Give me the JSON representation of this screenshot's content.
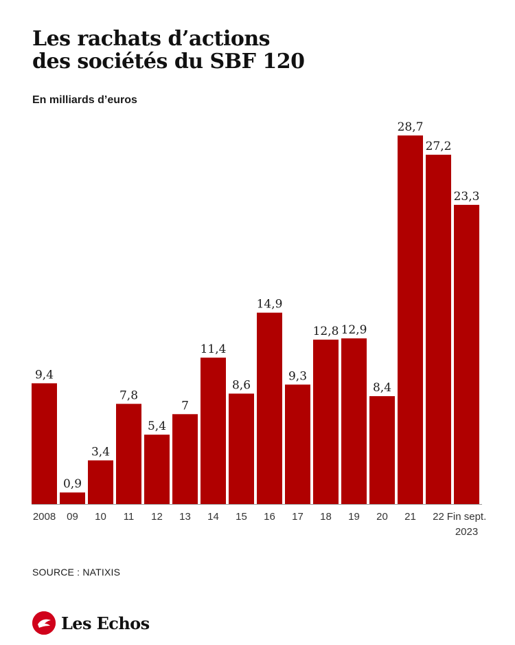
{
  "title_lines": [
    "Les rachats d’actions",
    "des sociétés du SBF 120"
  ],
  "subtitle": "En milliards d’euros",
  "source": "SOURCE : NATIXIS",
  "brand": "Les Echos",
  "colors": {
    "bar": "#b00000",
    "baseline": "#9a9a9a",
    "logo": "#d0021b"
  },
  "chart_data": {
    "type": "bar",
    "categories": [
      [
        "2008"
      ],
      [
        "09"
      ],
      [
        "10"
      ],
      [
        "11"
      ],
      [
        "12"
      ],
      [
        "13"
      ],
      [
        "14"
      ],
      [
        "15"
      ],
      [
        "16"
      ],
      [
        "17"
      ],
      [
        "18"
      ],
      [
        "19"
      ],
      [
        "20"
      ],
      [
        "21"
      ],
      [
        "22"
      ],
      [
        "Fin sept.",
        "2023"
      ]
    ],
    "values": [
      9.4,
      0.9,
      3.4,
      7.8,
      5.4,
      7,
      11.4,
      8.6,
      14.9,
      9.3,
      12.8,
      12.9,
      8.4,
      28.7,
      27.2,
      23.3
    ],
    "value_labels": [
      "9,4",
      "0,9",
      "3,4",
      "7,8",
      "5,4",
      "7",
      "11,4",
      "8,6",
      "14,9",
      "9,3",
      "12,8",
      "12,9",
      "8,4",
      "28,7",
      "27,2",
      "23,3"
    ],
    "title": "Les rachats d’actions des sociétés du SBF 120",
    "ylabel": "En milliards d’euros",
    "ylim": [
      0,
      28.7
    ],
    "grid": false,
    "legend": "none"
  }
}
